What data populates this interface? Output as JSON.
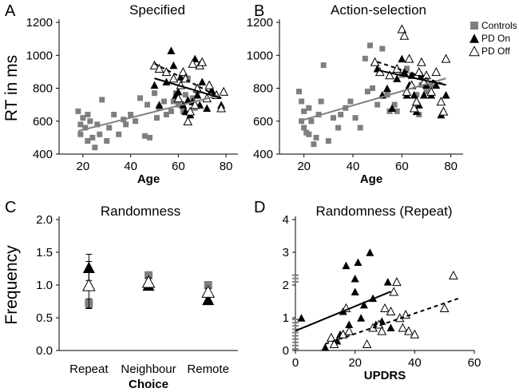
{
  "figure": {
    "legend": [
      {
        "label": "Controls",
        "marker": "square",
        "color": "#7f7f7f"
      },
      {
        "label": "PD On",
        "marker": "triangle-filled",
        "color": "#000000"
      },
      {
        "label": "PD Off",
        "marker": "triangle-open",
        "color": "#000000"
      }
    ],
    "colors": {
      "controls": "#7f7f7f",
      "pd": "#000000"
    }
  },
  "chart_data": [
    {
      "panel": "A",
      "title": "Specified",
      "type": "scatter",
      "xlabel": "Age",
      "ylabel": "RT in ms",
      "xlim": [
        10,
        85
      ],
      "ylim": [
        400,
        1200
      ],
      "xticks": [
        20,
        40,
        60,
        80
      ],
      "yticks": [
        400,
        600,
        800,
        1000,
        1200
      ],
      "series": [
        {
          "name": "Controls",
          "marker": "square",
          "points": [
            [
              18,
              660
            ],
            [
              19,
              580
            ],
            [
              19,
              520
            ],
            [
              20,
              620
            ],
            [
              21,
              560
            ],
            [
              22,
              480
            ],
            [
              22,
              640
            ],
            [
              23,
              600
            ],
            [
              24,
              500
            ],
            [
              25,
              440
            ],
            [
              26,
              580
            ],
            [
              27,
              520
            ],
            [
              28,
              730
            ],
            [
              30,
              480
            ],
            [
              31,
              560
            ],
            [
              33,
              640
            ],
            [
              35,
              520
            ],
            [
              37,
              610
            ],
            [
              38,
              580
            ],
            [
              40,
              640
            ],
            [
              42,
              600
            ],
            [
              44,
              740
            ],
            [
              46,
              510
            ],
            [
              47,
              700
            ],
            [
              48,
              500
            ],
            [
              50,
              770
            ],
            [
              51,
              620
            ],
            [
              52,
              680
            ],
            [
              54,
              720
            ],
            [
              55,
              640
            ],
            [
              57,
              660
            ],
            [
              58,
              720
            ],
            [
              59,
              770
            ],
            [
              60,
              700
            ],
            [
              62,
              660
            ],
            [
              63,
              760
            ],
            [
              64,
              860
            ],
            [
              66,
              740
            ],
            [
              67,
              680
            ],
            [
              68,
              780
            ]
          ]
        },
        {
          "name": "PD On",
          "marker": "triangle-filled",
          "points": [
            [
              50,
              820
            ],
            [
              52,
              700
            ],
            [
              55,
              840
            ],
            [
              57,
              1030
            ],
            [
              58,
              940
            ],
            [
              59,
              760
            ],
            [
              60,
              780
            ],
            [
              61,
              870
            ],
            [
              62,
              700
            ],
            [
              63,
              660
            ],
            [
              64,
              730
            ],
            [
              65,
              640
            ],
            [
              66,
              720
            ],
            [
              67,
              980
            ],
            [
              68,
              760
            ],
            [
              69,
              700
            ],
            [
              70,
              840
            ],
            [
              72,
              680
            ],
            [
              74,
              790
            ],
            [
              76,
              760
            ],
            [
              78,
              700
            ]
          ]
        },
        {
          "name": "PD Off",
          "marker": "triangle-open",
          "points": [
            [
              50,
              940
            ],
            [
              52,
              920
            ],
            [
              55,
              900
            ],
            [
              58,
              860
            ],
            [
              60,
              740
            ],
            [
              61,
              820
            ],
            [
              62,
              900
            ],
            [
              63,
              860
            ],
            [
              64,
              600
            ],
            [
              65,
              660
            ],
            [
              66,
              950
            ],
            [
              67,
              700
            ],
            [
              68,
              800
            ],
            [
              69,
              940
            ],
            [
              70,
              960
            ],
            [
              72,
              740
            ],
            [
              73,
              820
            ],
            [
              76,
              760
            ],
            [
              78,
              680
            ],
            [
              79,
              780
            ]
          ]
        }
      ],
      "fits": [
        {
          "series": "Controls",
          "style": "solid",
          "from": [
            18,
            540
          ],
          "to": [
            78,
            760
          ]
        },
        {
          "series": "PD On",
          "style": "solid",
          "from": [
            50,
            860
          ],
          "to": [
            78,
            740
          ]
        },
        {
          "series": "PD Off",
          "style": "dashed",
          "from": [
            50,
            950
          ],
          "to": [
            78,
            740
          ]
        }
      ]
    },
    {
      "panel": "B",
      "title": "Action-selection",
      "type": "scatter",
      "xlabel": "Age",
      "ylabel": "",
      "xlim": [
        10,
        85
      ],
      "ylim": [
        400,
        1200
      ],
      "xticks": [
        20,
        40,
        60,
        80
      ],
      "yticks": [
        400,
        600,
        800,
        1000,
        1200
      ],
      "series": [
        {
          "name": "Controls",
          "marker": "square",
          "points": [
            [
              18,
              780
            ],
            [
              19,
              720
            ],
            [
              19,
              600
            ],
            [
              20,
              560
            ],
            [
              20,
              660
            ],
            [
              21,
              530
            ],
            [
              22,
              520
            ],
            [
              22,
              680
            ],
            [
              23,
              600
            ],
            [
              24,
              460
            ],
            [
              25,
              500
            ],
            [
              26,
              640
            ],
            [
              27,
              720
            ],
            [
              28,
              940
            ],
            [
              30,
              480
            ],
            [
              32,
              620
            ],
            [
              34,
              560
            ],
            [
              35,
              640
            ],
            [
              37,
              680
            ],
            [
              39,
              720
            ],
            [
              41,
              620
            ],
            [
              43,
              560
            ],
            [
              45,
              980
            ],
            [
              46,
              780
            ],
            [
              47,
              1060
            ],
            [
              48,
              800
            ],
            [
              50,
              700
            ],
            [
              52,
              1040
            ],
            [
              54,
              760
            ],
            [
              55,
              660
            ],
            [
              57,
              700
            ],
            [
              58,
              660
            ],
            [
              60,
              880
            ],
            [
              62,
              920
            ],
            [
              64,
              880
            ],
            [
              66,
              760
            ],
            [
              67,
              640
            ],
            [
              68,
              820
            ],
            [
              70,
              780
            ],
            [
              72,
              820
            ]
          ]
        },
        {
          "name": "PD On",
          "marker": "triangle-filled",
          "points": [
            [
              50,
              920
            ],
            [
              52,
              760
            ],
            [
              54,
              800
            ],
            [
              56,
              680
            ],
            [
              58,
              860
            ],
            [
              60,
              980
            ],
            [
              61,
              900
            ],
            [
              62,
              760
            ],
            [
              63,
              820
            ],
            [
              64,
              880
            ],
            [
              65,
              760
            ],
            [
              66,
              660
            ],
            [
              67,
              700
            ],
            [
              68,
              880
            ],
            [
              69,
              760
            ],
            [
              70,
              820
            ],
            [
              72,
              760
            ],
            [
              74,
              820
            ],
            [
              76,
              640
            ],
            [
              78,
              760
            ]
          ]
        },
        {
          "name": "PD Off",
          "marker": "triangle-open",
          "points": [
            [
              49,
              960
            ],
            [
              51,
              900
            ],
            [
              55,
              880
            ],
            [
              58,
              920
            ],
            [
              60,
              1160
            ],
            [
              61,
              1120
            ],
            [
              62,
              780
            ],
            [
              63,
              980
            ],
            [
              64,
              820
            ],
            [
              65,
              680
            ],
            [
              66,
              720
            ],
            [
              67,
              900
            ],
            [
              68,
              960
            ],
            [
              69,
              840
            ],
            [
              70,
              880
            ],
            [
              72,
              780
            ],
            [
              74,
              900
            ],
            [
              76,
              720
            ],
            [
              77,
              660
            ],
            [
              78,
              980
            ]
          ]
        }
      ],
      "fits": [
        {
          "series": "Controls",
          "style": "solid",
          "from": [
            18,
            600
          ],
          "to": [
            78,
            860
          ]
        },
        {
          "series": "PD On",
          "style": "solid",
          "from": [
            50,
            910
          ],
          "to": [
            78,
            820
          ]
        },
        {
          "series": "PD Off",
          "style": "dashed",
          "from": [
            50,
            960
          ],
          "to": [
            78,
            820
          ]
        }
      ]
    },
    {
      "panel": "C",
      "title": "Randomness",
      "type": "scatter",
      "xlabel": "Choice",
      "ylabel": "Frequency",
      "categories": [
        "Repeat",
        "Neighbour",
        "Remote"
      ],
      "ylim": [
        0,
        2
      ],
      "yticks": [
        "0.0",
        "0.5",
        "1.0",
        "1.5",
        "2.0"
      ],
      "series": [
        {
          "name": "Controls",
          "marker": "square",
          "values": [
            0.72,
            1.15,
            1.0
          ],
          "errors": [
            0.07,
            0.05,
            0.04
          ]
        },
        {
          "name": "PD On",
          "marker": "triangle-filled",
          "values": [
            1.27,
            1.0,
            0.78
          ],
          "errors": [
            0.2,
            0.05,
            0.05
          ]
        },
        {
          "name": "PD Off",
          "marker": "triangle-open",
          "values": [
            1.0,
            1.05,
            0.9
          ],
          "errors": [
            0.36,
            0.06,
            0.05
          ]
        }
      ]
    },
    {
      "panel": "D",
      "title": "Randomness (Repeat)",
      "type": "scatter",
      "xlabel": "UPDRS",
      "ylabel": "",
      "xlim": [
        0,
        60
      ],
      "ylim": [
        0,
        4
      ],
      "xticks": [
        0,
        20,
        40,
        60
      ],
      "yticks": [
        0,
        1,
        2,
        3,
        4
      ],
      "series": [
        {
          "name": "Controls",
          "marker": "dash",
          "points": [
            [
              0,
              2.3
            ],
            [
              0,
              2.2
            ],
            [
              0,
              2.1
            ],
            [
              0,
              0.95
            ],
            [
              0,
              0.85
            ],
            [
              0,
              0.75
            ],
            [
              0,
              0.65
            ],
            [
              0,
              0.55
            ],
            [
              0,
              0.45
            ],
            [
              0,
              0.35
            ],
            [
              0,
              0.25
            ],
            [
              0,
              0.15
            ],
            [
              0,
              0.05
            ]
          ]
        },
        {
          "name": "PD On",
          "marker": "triangle-filled",
          "points": [
            [
              2,
              1.0
            ],
            [
              10,
              0.1
            ],
            [
              14,
              0.3
            ],
            [
              15,
              0.5
            ],
            [
              16,
              1.2
            ],
            [
              17,
              2.6
            ],
            [
              18,
              0.8
            ],
            [
              20,
              1.8
            ],
            [
              20,
              2.2
            ],
            [
              21,
              2.7
            ],
            [
              22,
              1.0
            ],
            [
              23,
              1.4
            ],
            [
              25,
              3.0
            ],
            [
              26,
              1.6
            ],
            [
              27,
              0.8
            ],
            [
              29,
              0.9
            ],
            [
              31,
              2.1
            ],
            [
              32,
              0.7
            ]
          ]
        },
        {
          "name": "PD Off",
          "marker": "triangle-open",
          "points": [
            [
              12,
              0.4
            ],
            [
              13,
              0.2
            ],
            [
              16,
              0.5
            ],
            [
              17,
              1.3
            ],
            [
              18,
              0.6
            ],
            [
              24,
              0.2
            ],
            [
              26,
              0.7
            ],
            [
              28,
              0.8
            ],
            [
              29,
              0.6
            ],
            [
              30,
              1.3
            ],
            [
              32,
              1.2
            ],
            [
              33,
              1.8
            ],
            [
              34,
              2.1
            ],
            [
              35,
              1.0
            ],
            [
              36,
              0.7
            ],
            [
              37,
              1.1
            ],
            [
              38,
              0.6
            ],
            [
              40,
              0.5
            ],
            [
              50,
              1.3
            ],
            [
              53,
              2.3
            ]
          ]
        }
      ],
      "fits": [
        {
          "series": "PD On",
          "style": "solid",
          "from": [
            0,
            0.6
          ],
          "to": [
            32,
            1.8
          ]
        },
        {
          "series": "PD Off",
          "style": "dashed",
          "from": [
            10,
            0.2
          ],
          "to": [
            55,
            1.6
          ]
        }
      ]
    }
  ]
}
